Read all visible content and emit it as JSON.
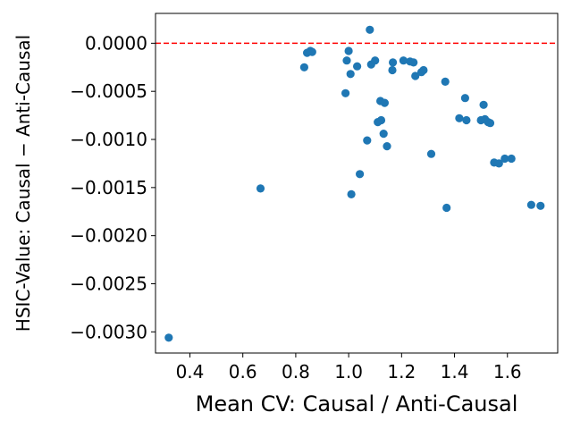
{
  "chart_data": {
    "type": "scatter",
    "xlabel": "Mean CV: Causal / Anti-Causal",
    "ylabel": "HSIC-Value: Causal − Anti-Causal",
    "xlim": [
      0.27,
      1.79
    ],
    "ylim": [
      -0.00322,
      0.00031
    ],
    "x_ticks": [
      0.4,
      0.6,
      0.8,
      1.0,
      1.2,
      1.4,
      1.6
    ],
    "x_tick_labels": [
      "0.4",
      "0.6",
      "0.8",
      "1.0",
      "1.2",
      "1.4",
      "1.6"
    ],
    "y_ticks": [
      0.0,
      -0.0005,
      -0.001,
      -0.0015,
      -0.002,
      -0.0025,
      -0.003
    ],
    "y_tick_labels": [
      "0.0000",
      "−0.0005",
      "−0.0010",
      "−0.0015",
      "−0.0020",
      "−0.0025",
      "−0.0030"
    ],
    "grid": false,
    "reference_line": {
      "y": 0.0,
      "color": "#ff0000",
      "style": "dashed"
    },
    "series": [
      {
        "color": "#1f77b4",
        "points": [
          {
            "x": 0.32,
            "y": -0.00306
          },
          {
            "x": 0.667,
            "y": -0.00151
          },
          {
            "x": 0.832,
            "y": -0.00025
          },
          {
            "x": 0.843,
            "y": -0.0001
          },
          {
            "x": 0.855,
            "y": -8e-05
          },
          {
            "x": 0.862,
            "y": -9e-05
          },
          {
            "x": 0.988,
            "y": -0.00052
          },
          {
            "x": 0.993,
            "y": -0.00018
          },
          {
            "x": 1.0,
            "y": -8e-05
          },
          {
            "x": 1.007,
            "y": -0.00032
          },
          {
            "x": 1.01,
            "y": -0.00157
          },
          {
            "x": 1.032,
            "y": -0.00024
          },
          {
            "x": 1.042,
            "y": -0.00136
          },
          {
            "x": 1.07,
            "y": -0.00101
          },
          {
            "x": 1.08,
            "y": 0.00014
          },
          {
            "x": 1.085,
            "y": -0.00022
          },
          {
            "x": 1.1,
            "y": -0.00018
          },
          {
            "x": 1.11,
            "y": -0.00082
          },
          {
            "x": 1.12,
            "y": -0.0006
          },
          {
            "x": 1.123,
            "y": -0.0008
          },
          {
            "x": 1.132,
            "y": -0.00094
          },
          {
            "x": 1.136,
            "y": -0.00062
          },
          {
            "x": 1.145,
            "y": -0.00107
          },
          {
            "x": 1.165,
            "y": -0.00028
          },
          {
            "x": 1.167,
            "y": -0.0002
          },
          {
            "x": 1.207,
            "y": -0.00018
          },
          {
            "x": 1.232,
            "y": -0.00019
          },
          {
            "x": 1.245,
            "y": -0.0002
          },
          {
            "x": 1.252,
            "y": -0.00034
          },
          {
            "x": 1.275,
            "y": -0.0003
          },
          {
            "x": 1.283,
            "y": -0.00028
          },
          {
            "x": 1.312,
            "y": -0.00115
          },
          {
            "x": 1.365,
            "y": -0.0004
          },
          {
            "x": 1.37,
            "y": -0.00171
          },
          {
            "x": 1.418,
            "y": -0.00078
          },
          {
            "x": 1.44,
            "y": -0.00057
          },
          {
            "x": 1.445,
            "y": -0.0008
          },
          {
            "x": 1.5,
            "y": -0.0008
          },
          {
            "x": 1.51,
            "y": -0.00064
          },
          {
            "x": 1.515,
            "y": -0.00079
          },
          {
            "x": 1.527,
            "y": -0.00082
          },
          {
            "x": 1.535,
            "y": -0.00083
          },
          {
            "x": 1.55,
            "y": -0.00124
          },
          {
            "x": 1.568,
            "y": -0.00125
          },
          {
            "x": 1.59,
            "y": -0.0012
          },
          {
            "x": 1.615,
            "y": -0.0012
          },
          {
            "x": 1.69,
            "y": -0.00168
          },
          {
            "x": 1.725,
            "y": -0.00169
          }
        ]
      }
    ]
  }
}
